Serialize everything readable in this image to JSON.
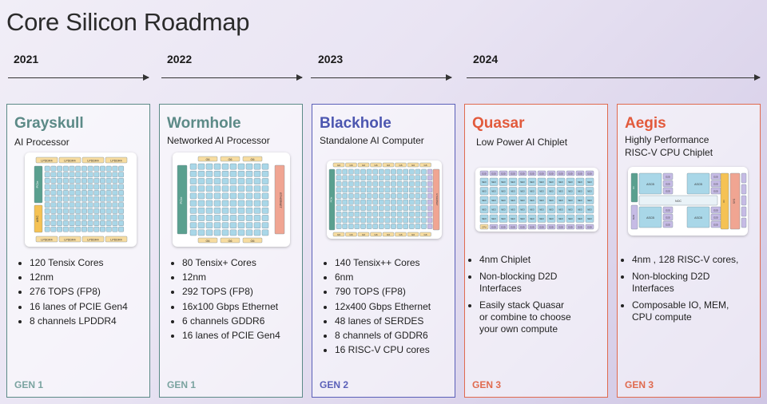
{
  "title": "Core Silicon Roadmap",
  "timeline": {
    "years": [
      "2021",
      "2022",
      "2023",
      "2024"
    ]
  },
  "colors": {
    "gen1_border": "#5c8a87",
    "gen2_border": "#5a5fb8",
    "gen3_border": "#e06a4e",
    "grayskull_name": "#5c8a87",
    "wormhole_name": "#5c8a87",
    "blackhole_name": "#4c56b0",
    "quasar_name": "#e25a3c",
    "aegis_name": "#e25a3c",
    "core_cell": "#a9d7e8",
    "memory_block": "#f7dca0",
    "eth_block": "#f0a592",
    "pcie_block": "#5aa08f",
    "arc_block": "#f5c254",
    "riscv_block": "#c6bbe5"
  },
  "cards": [
    {
      "name": "Grayskull",
      "subtitle": [
        "AI Processor"
      ],
      "features": [
        "120 Tensix Cores",
        "12nm",
        "276 TOPS (FP8)",
        "16 lanes of PCIE Gen4",
        "8 channels LPDDR4"
      ],
      "generation": "GEN 1",
      "diagram_labels": {
        "memory": "LPDDR4",
        "io": "PCIe",
        "arc": "ARC"
      }
    },
    {
      "name": "Wormhole",
      "subtitle": [
        "Networked AI Processor"
      ],
      "features": [
        "80 Tensix+ Cores",
        "12nm",
        "292 TOPS (FP8)",
        "16x100 Gbps Ethernet",
        "6 channels GDDR6",
        "16 lanes of PCIE Gen4"
      ],
      "generation": "GEN 1",
      "diagram_labels": {
        "memory": "G6",
        "io": "PCIe",
        "eth": "ETHERNET"
      }
    },
    {
      "name": "Blackhole",
      "subtitle": [
        "Standalone AI Computer"
      ],
      "features": [
        "140 Tensix++ Cores",
        "6nm",
        "790 TOPS (FP8)",
        "12x400 Gbps Ethernet",
        "48 lanes of SERDES",
        "8 channels of GDDR6",
        "16 RISC-V CPU cores"
      ],
      "generation": "GEN 2",
      "diagram_labels": {
        "memory": "G6",
        "io": "PCIe",
        "eth": "ETHERNET"
      }
    },
    {
      "name": "Quasar",
      "subtitle": [
        "Low Power AI Chiplet"
      ],
      "features": [
        "4nm Chiplet",
        "Non-blocking D2D Interfaces",
        "Easily stack Quasar or combine to choose your own compute"
      ],
      "generation": "GEN 3",
      "diagram_labels": {
        "d2d": "D2D",
        "compute": "NEO",
        "cpu": "CPU"
      }
    },
    {
      "name": "Aegis",
      "subtitle": [
        "Highly Performance",
        "RISC-V CPU Chiplet"
      ],
      "features": [
        "4nm , 128 RISC-V cores,",
        "Non-blocking D2D Interfaces",
        "Composable IO, MEM, CPU compute"
      ],
      "generation": "GEN 3",
      "diagram_labels": {
        "cluster": "ASCB",
        "d2d": "D2D",
        "noc": "NOC",
        "io": "IO",
        "sys": "SYS"
      }
    }
  ]
}
